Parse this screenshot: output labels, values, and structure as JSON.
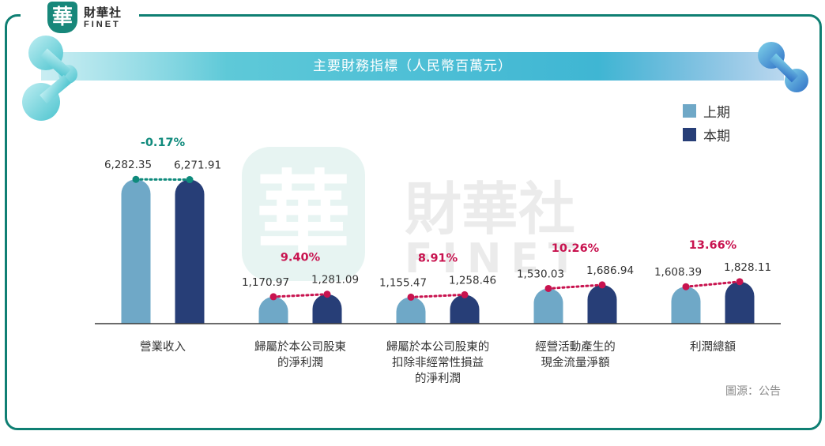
{
  "header": {
    "logo_seal": "華",
    "logo_cn": "財華社",
    "logo_en": "FINET"
  },
  "chart_data": {
    "type": "bar",
    "title": "主要財務指標（人民幣百萬元）",
    "categories": [
      [
        "營業收入"
      ],
      [
        "歸屬於本公司股東",
        "的淨利潤"
      ],
      [
        "歸屬於本公司股東的",
        "扣除非經常性損益",
        "的淨利潤"
      ],
      [
        "經營活動產生的",
        "現金流量淨額"
      ],
      [
        "利潤總額"
      ]
    ],
    "series": [
      {
        "name": "上期",
        "color": "#6fa8c7",
        "values": [
          6282.35,
          1170.97,
          1155.47,
          1530.03,
          1608.39
        ],
        "labels": [
          "6,282.35",
          "1,170.97",
          "1,155.47",
          "1,530.03",
          "1,608.39"
        ]
      },
      {
        "name": "本期",
        "color": "#273e77",
        "values": [
          6271.91,
          1281.09,
          1258.46,
          1686.94,
          1828.11
        ],
        "labels": [
          "6,271.91",
          "1,281.09",
          "1,258.46",
          "1,686.94",
          "1,828.11"
        ]
      }
    ],
    "changes": [
      "-0.17%",
      "9.40%",
      "8.91%",
      "10.26%",
      "13.66%"
    ],
    "change_colors": [
      "#0f8a7c",
      "#c8134f",
      "#c8134f",
      "#c8134f",
      "#c8134f"
    ],
    "legend_position": "top-right",
    "grid": false,
    "ylim": [
      0,
      6600
    ]
  },
  "watermark": {
    "seal": "華",
    "cn": "財華社",
    "en": "FINET"
  },
  "source": "圖源：公告",
  "colors": {
    "accent": "#0f7f73",
    "title_band": "#5ec9d8",
    "positive": "#c8134f",
    "negative": "#0f8a7c"
  }
}
